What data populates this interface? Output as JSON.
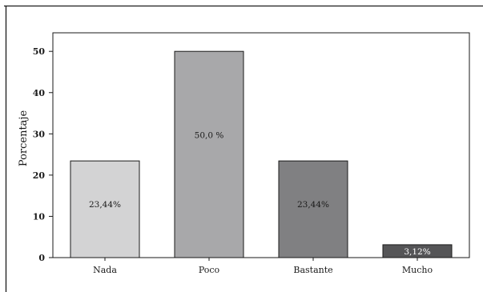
{
  "chart_data": {
    "type": "bar",
    "title": "",
    "xlabel": "",
    "ylabel": "Porcentaje",
    "categories": [
      "Nada",
      "Poco",
      "Bastante",
      "Mucho"
    ],
    "values": [
      23.44,
      50.0,
      23.44,
      3.12
    ],
    "data_labels": [
      "23,44%",
      "50,0 %",
      "23,44%",
      "3,12%"
    ],
    "bar_colors": [
      "#d3d3d4",
      "#a8a8aa",
      "#808082",
      "#555557"
    ],
    "yticks": [
      0,
      10,
      20,
      30,
      40,
      50
    ],
    "ytick_labels": [
      "0",
      "10",
      "20",
      "30",
      "40",
      "50"
    ],
    "ylim": [
      0,
      54.5
    ],
    "grid": false,
    "legend": "none"
  }
}
